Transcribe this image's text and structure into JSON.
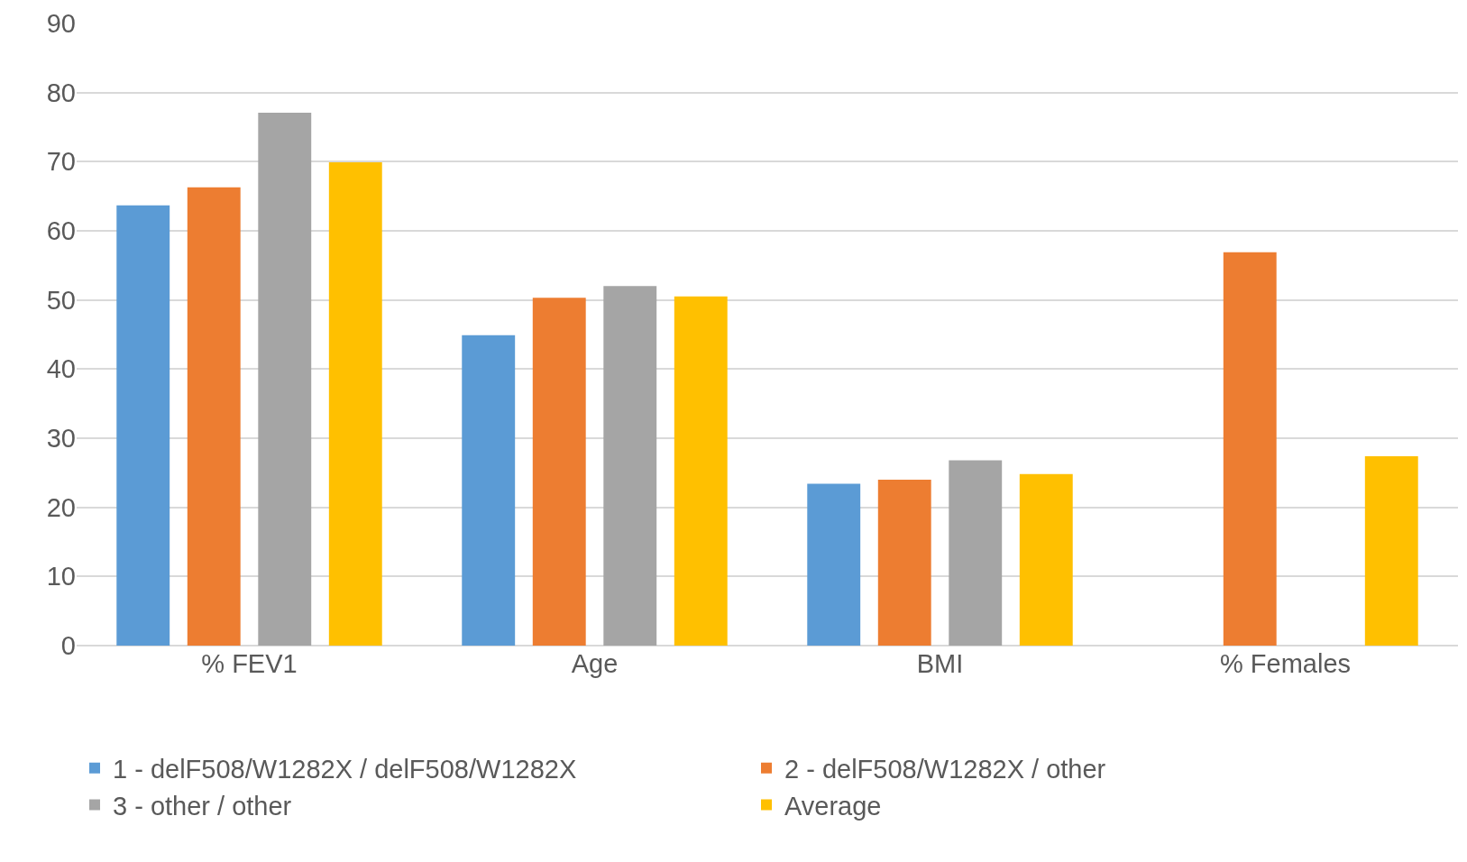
{
  "chart_data": {
    "type": "bar",
    "categories": [
      "% FEV1",
      "Age",
      "BMI",
      "% Females"
    ],
    "series": [
      {
        "name": "1 - delF508/W1282X / delF508/W1282X",
        "color": "#5b9bd5",
        "values": [
          63.7,
          44.9,
          23.4,
          null
        ]
      },
      {
        "name": "2 - delF508/W1282X / other",
        "color": "#ed7d31",
        "values": [
          66.3,
          50.3,
          24.0,
          56.9
        ]
      },
      {
        "name": "3 - other / other",
        "color": "#a5a5a5",
        "values": [
          77.1,
          52.0,
          26.8,
          null
        ]
      },
      {
        "name": "Average",
        "color": "#ffc000",
        "values": [
          69.9,
          50.5,
          24.8,
          27.4
        ]
      }
    ],
    "ylim": [
      0,
      90
    ],
    "yticks": [
      0,
      10,
      20,
      30,
      40,
      50,
      60,
      70,
      80,
      90
    ],
    "grid": "y",
    "legend": "bottom"
  }
}
